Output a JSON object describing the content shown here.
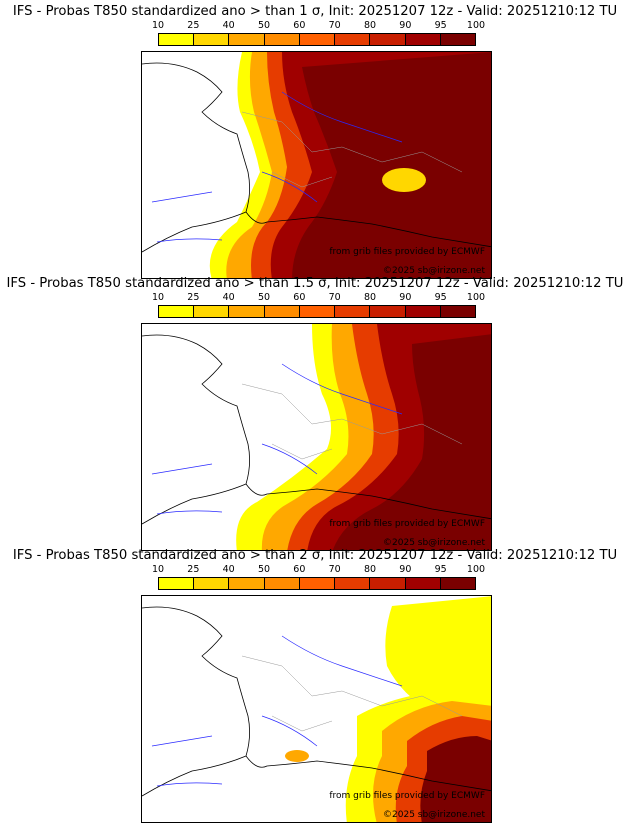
{
  "panels": [
    {
      "title": "IFS - Probas T850  standardized ano > than 1 σ, Init: 20251207 12z - Valid: 20251210:12 TU",
      "sigma": "1"
    },
    {
      "title": "IFS - Probas T850  standardized ano > than 1.5 σ, Init: 20251207 12z - Valid: 20251210:12 TU",
      "sigma": "1.5"
    },
    {
      "title": "IFS - Probas T850  standardized ano > than 2 σ, Init: 20251207 12z - Valid: 20251210:12 TU",
      "sigma": "2"
    }
  ],
  "colorbar": {
    "ticks": [
      "10",
      "25",
      "40",
      "50",
      "60",
      "70",
      "80",
      "90",
      "95",
      "100"
    ],
    "colors": [
      "#ffff00",
      "#ffd700",
      "#ffa800",
      "#ff8c00",
      "#ff6000",
      "#e63c00",
      "#c81e00",
      "#a00000",
      "#7a0000"
    ]
  },
  "credits": {
    "grib": "from grib files provided by ECMWF",
    "copyright": "©2025 sb@irizone.net"
  },
  "map_colors": {
    "coast": "#000000",
    "rivers": "#2a2aff",
    "regions": "#999999"
  }
}
